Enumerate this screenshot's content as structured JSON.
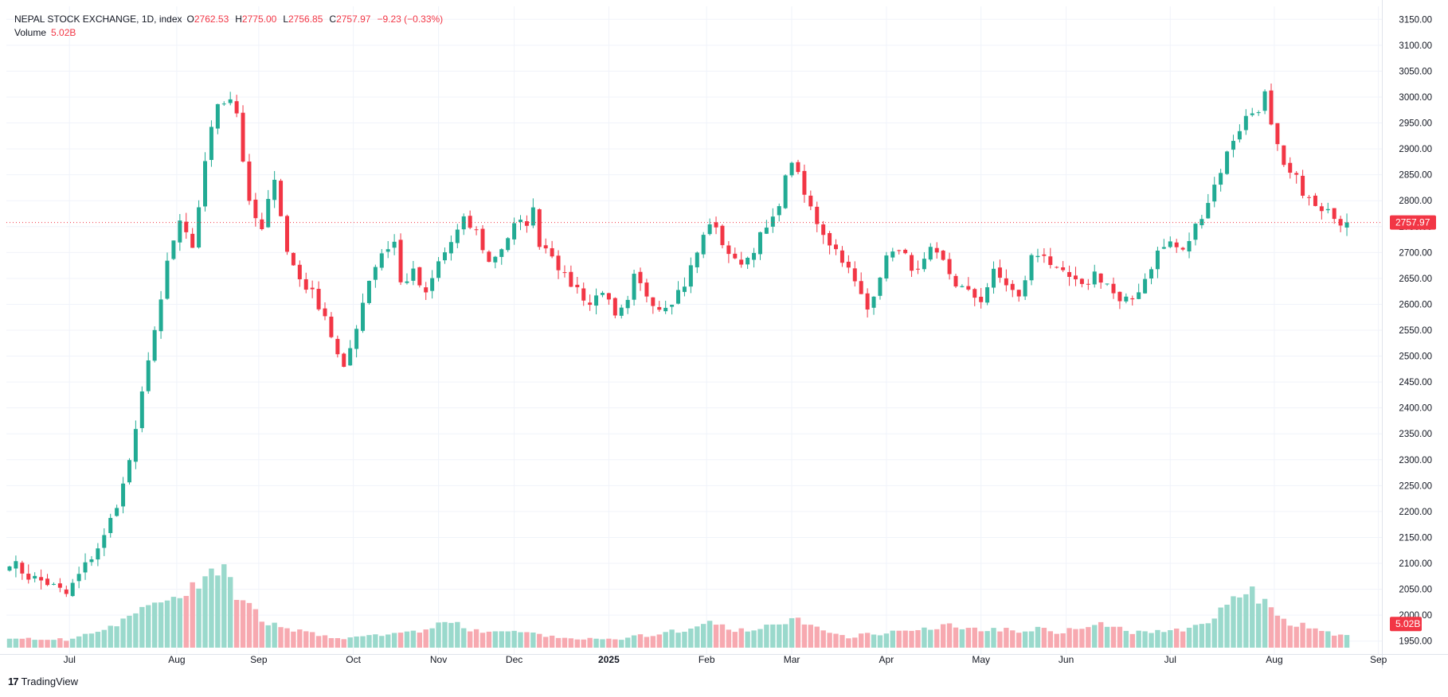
{
  "legend": {
    "symbol": "NEPAL STOCK EXCHANGE, 1D, index",
    "o_label": "O",
    "open": "2762.53",
    "h_label": "H",
    "high": "2775.00",
    "l_label": "L",
    "low": "2756.85",
    "c_label": "C",
    "close": "2757.97",
    "change": "−9.23 (−0.33%)",
    "volume_label": "Volume",
    "volume": "5.02B"
  },
  "brand": {
    "logo": "17",
    "name": "TradingView"
  },
  "colors": {
    "up": "#22ab94",
    "down": "#f23645",
    "up_volume": "#9ad9cc",
    "down_volume": "#f7a9b0",
    "grid": "#f0f3fa",
    "axis_text": "#131722"
  },
  "chart_data": {
    "type": "candlestick",
    "interval": "1D",
    "price_axis": {
      "ylim": [
        1925,
        3175
      ],
      "ticks": [
        1950,
        2000,
        2050,
        2100,
        2150,
        2200,
        2250,
        2300,
        2350,
        2400,
        2450,
        2500,
        2550,
        2600,
        2650,
        2700,
        2750,
        2800,
        2850,
        2900,
        2950,
        3000,
        3050,
        3100,
        3150
      ],
      "tick_labels": [
        "1950.00",
        "2000.00",
        "2050.00",
        "2100.00",
        "2150.00",
        "2200.00",
        "2250.00",
        "2300.00",
        "2350.00",
        "2400.00",
        "2450.00",
        "2500.00",
        "2550.00",
        "2600.00",
        "2650.00",
        "2700.00",
        "2750.00",
        "2800.00",
        "2850.00",
        "2900.00",
        "2950.00",
        "3000.00",
        "3050.00",
        "3100.00",
        "3150.00"
      ],
      "last_price": 2757.97,
      "last_price_label": "2757.97",
      "volume_tag": "5.02B"
    },
    "time_axis": {
      "labels": [
        {
          "text": "Jul",
          "index": 9.5
        },
        {
          "text": "Aug",
          "index": 26.5
        },
        {
          "text": "Sep",
          "index": 39.5
        },
        {
          "text": "Oct",
          "index": 54.5
        },
        {
          "text": "Nov",
          "index": 68
        },
        {
          "text": "Dec",
          "index": 80
        },
        {
          "text": "2025",
          "index": 95
        },
        {
          "text": "Feb",
          "index": 110.5
        },
        {
          "text": "Mar",
          "index": 124
        },
        {
          "text": "Apr",
          "index": 139
        },
        {
          "text": "May",
          "index": 154
        },
        {
          "text": "Jun",
          "index": 167.5
        },
        {
          "text": "Jul",
          "index": 184
        },
        {
          "text": "Aug",
          "index": 200.5
        },
        {
          "text": "Sep",
          "index": 217
        }
      ]
    },
    "close_path": [
      [
        0,
        2105
      ],
      [
        3,
        2075
      ],
      [
        6,
        2062
      ],
      [
        9,
        2040
      ],
      [
        12,
        2095
      ],
      [
        15,
        2150
      ],
      [
        18,
        2250
      ],
      [
        20,
        2350
      ],
      [
        22,
        2500
      ],
      [
        24,
        2600
      ],
      [
        25,
        2680
      ],
      [
        27,
        2760
      ],
      [
        29,
        2700
      ],
      [
        31,
        2880
      ],
      [
        33,
        2990
      ],
      [
        35,
        3000
      ],
      [
        36,
        2970
      ],
      [
        38,
        2790
      ],
      [
        40,
        2740
      ],
      [
        42,
        2850
      ],
      [
        44,
        2700
      ],
      [
        46,
        2650
      ],
      [
        48,
        2620
      ],
      [
        50,
        2580
      ],
      [
        52,
        2500
      ],
      [
        53,
        2470
      ],
      [
        55,
        2560
      ],
      [
        57,
        2650
      ],
      [
        59,
        2700
      ],
      [
        61,
        2720
      ],
      [
        62,
        2640
      ],
      [
        64,
        2660
      ],
      [
        66,
        2615
      ],
      [
        68,
        2680
      ],
      [
        70,
        2720
      ],
      [
        72,
        2760
      ],
      [
        74,
        2740
      ],
      [
        76,
        2680
      ],
      [
        78,
        2710
      ],
      [
        80,
        2750
      ],
      [
        82,
        2760
      ],
      [
        83,
        2780
      ],
      [
        84,
        2720
      ],
      [
        86,
        2700
      ],
      [
        88,
        2650
      ],
      [
        90,
        2630
      ],
      [
        92,
        2600
      ],
      [
        94,
        2630
      ],
      [
        96,
        2570
      ],
      [
        98,
        2600
      ],
      [
        99,
        2650
      ],
      [
        101,
        2620
      ],
      [
        103,
        2595
      ],
      [
        105,
        2610
      ],
      [
        107,
        2640
      ],
      [
        109,
        2700
      ],
      [
        111,
        2760
      ],
      [
        113,
        2720
      ],
      [
        115,
        2680
      ],
      [
        117,
        2690
      ],
      [
        119,
        2730
      ],
      [
        121,
        2760
      ],
      [
        122,
        2800
      ],
      [
        124,
        2880
      ],
      [
        126,
        2810
      ],
      [
        128,
        2760
      ],
      [
        130,
        2720
      ],
      [
        132,
        2690
      ],
      [
        134,
        2640
      ],
      [
        136,
        2590
      ],
      [
        138,
        2660
      ],
      [
        140,
        2710
      ],
      [
        142,
        2690
      ],
      [
        144,
        2660
      ],
      [
        146,
        2700
      ],
      [
        148,
        2680
      ],
      [
        150,
        2640
      ],
      [
        152,
        2620
      ],
      [
        154,
        2610
      ],
      [
        156,
        2660
      ],
      [
        158,
        2640
      ],
      [
        160,
        2610
      ],
      [
        162,
        2690
      ],
      [
        164,
        2700
      ],
      [
        166,
        2660
      ],
      [
        168,
        2650
      ],
      [
        170,
        2630
      ],
      [
        172,
        2660
      ],
      [
        174,
        2640
      ],
      [
        176,
        2600
      ],
      [
        178,
        2610
      ],
      [
        180,
        2650
      ],
      [
        182,
        2700
      ],
      [
        184,
        2720
      ],
      [
        186,
        2700
      ],
      [
        188,
        2750
      ],
      [
        190,
        2800
      ],
      [
        192,
        2860
      ],
      [
        194,
        2920
      ],
      [
        196,
        2960
      ],
      [
        198,
        2980
      ],
      [
        199,
        3005
      ],
      [
        200,
        2940
      ],
      [
        201,
        2900
      ],
      [
        202,
        2860
      ],
      [
        204,
        2840
      ],
      [
        206,
        2800
      ],
      [
        208,
        2775
      ],
      [
        210,
        2775
      ],
      [
        211,
        2760
      ],
      [
        212,
        2757.97
      ]
    ],
    "volume_path": [
      [
        0,
        1.4
      ],
      [
        5,
        1.2
      ],
      [
        9,
        1.1
      ],
      [
        12,
        1.8
      ],
      [
        15,
        2.2
      ],
      [
        18,
        3.5
      ],
      [
        21,
        5.0
      ],
      [
        24,
        6.5
      ],
      [
        27,
        7.5
      ],
      [
        30,
        8.5
      ],
      [
        32,
        10.5
      ],
      [
        34,
        11.0
      ],
      [
        35,
        8.6
      ],
      [
        36,
        6.0
      ],
      [
        38,
        5.5
      ],
      [
        40,
        4.0
      ],
      [
        42,
        3.0
      ],
      [
        45,
        2.5
      ],
      [
        48,
        2.0
      ],
      [
        51,
        1.5
      ],
      [
        54,
        1.3
      ],
      [
        57,
        1.6
      ],
      [
        60,
        1.8
      ],
      [
        63,
        2.0
      ],
      [
        66,
        2.4
      ],
      [
        68,
        3.4
      ],
      [
        70,
        3.6
      ],
      [
        72,
        2.6
      ],
      [
        75,
        2.1
      ],
      [
        78,
        2.4
      ],
      [
        81,
        2.0
      ],
      [
        84,
        1.7
      ],
      [
        87,
        1.4
      ],
      [
        90,
        1.1
      ],
      [
        93,
        1.2
      ],
      [
        96,
        1.1
      ],
      [
        99,
        1.5
      ],
      [
        102,
        1.8
      ],
      [
        105,
        2.2
      ],
      [
        108,
        2.4
      ],
      [
        110,
        3.0
      ],
      [
        112,
        3.5
      ],
      [
        114,
        2.5
      ],
      [
        117,
        2.2
      ],
      [
        120,
        2.8
      ],
      [
        122,
        3.2
      ],
      [
        124,
        4.2
      ],
      [
        126,
        3.5
      ],
      [
        128,
        2.6
      ],
      [
        130,
        1.8
      ],
      [
        133,
        1.5
      ],
      [
        136,
        1.8
      ],
      [
        139,
        2.0
      ],
      [
        142,
        2.4
      ],
      [
        145,
        2.8
      ],
      [
        148,
        3.0
      ],
      [
        151,
        2.8
      ],
      [
        154,
        2.5
      ],
      [
        157,
        2.6
      ],
      [
        160,
        2.4
      ],
      [
        163,
        2.6
      ],
      [
        166,
        2.2
      ],
      [
        169,
        2.5
      ],
      [
        172,
        2.8
      ],
      [
        174,
        3.3
      ],
      [
        177,
        2.2
      ],
      [
        180,
        2.0
      ],
      [
        183,
        2.3
      ],
      [
        186,
        2.4
      ],
      [
        189,
        3.0
      ],
      [
        191,
        4.5
      ],
      [
        193,
        6.0
      ],
      [
        195,
        6.5
      ],
      [
        197,
        7.5
      ],
      [
        199,
        6.0
      ],
      [
        201,
        4.5
      ],
      [
        203,
        3.5
      ],
      [
        205,
        3.0
      ],
      [
        207,
        2.4
      ],
      [
        209,
        2.0
      ],
      [
        211,
        1.8
      ],
      [
        212,
        1.6
      ]
    ],
    "volume_scale_label": "5.02B"
  }
}
